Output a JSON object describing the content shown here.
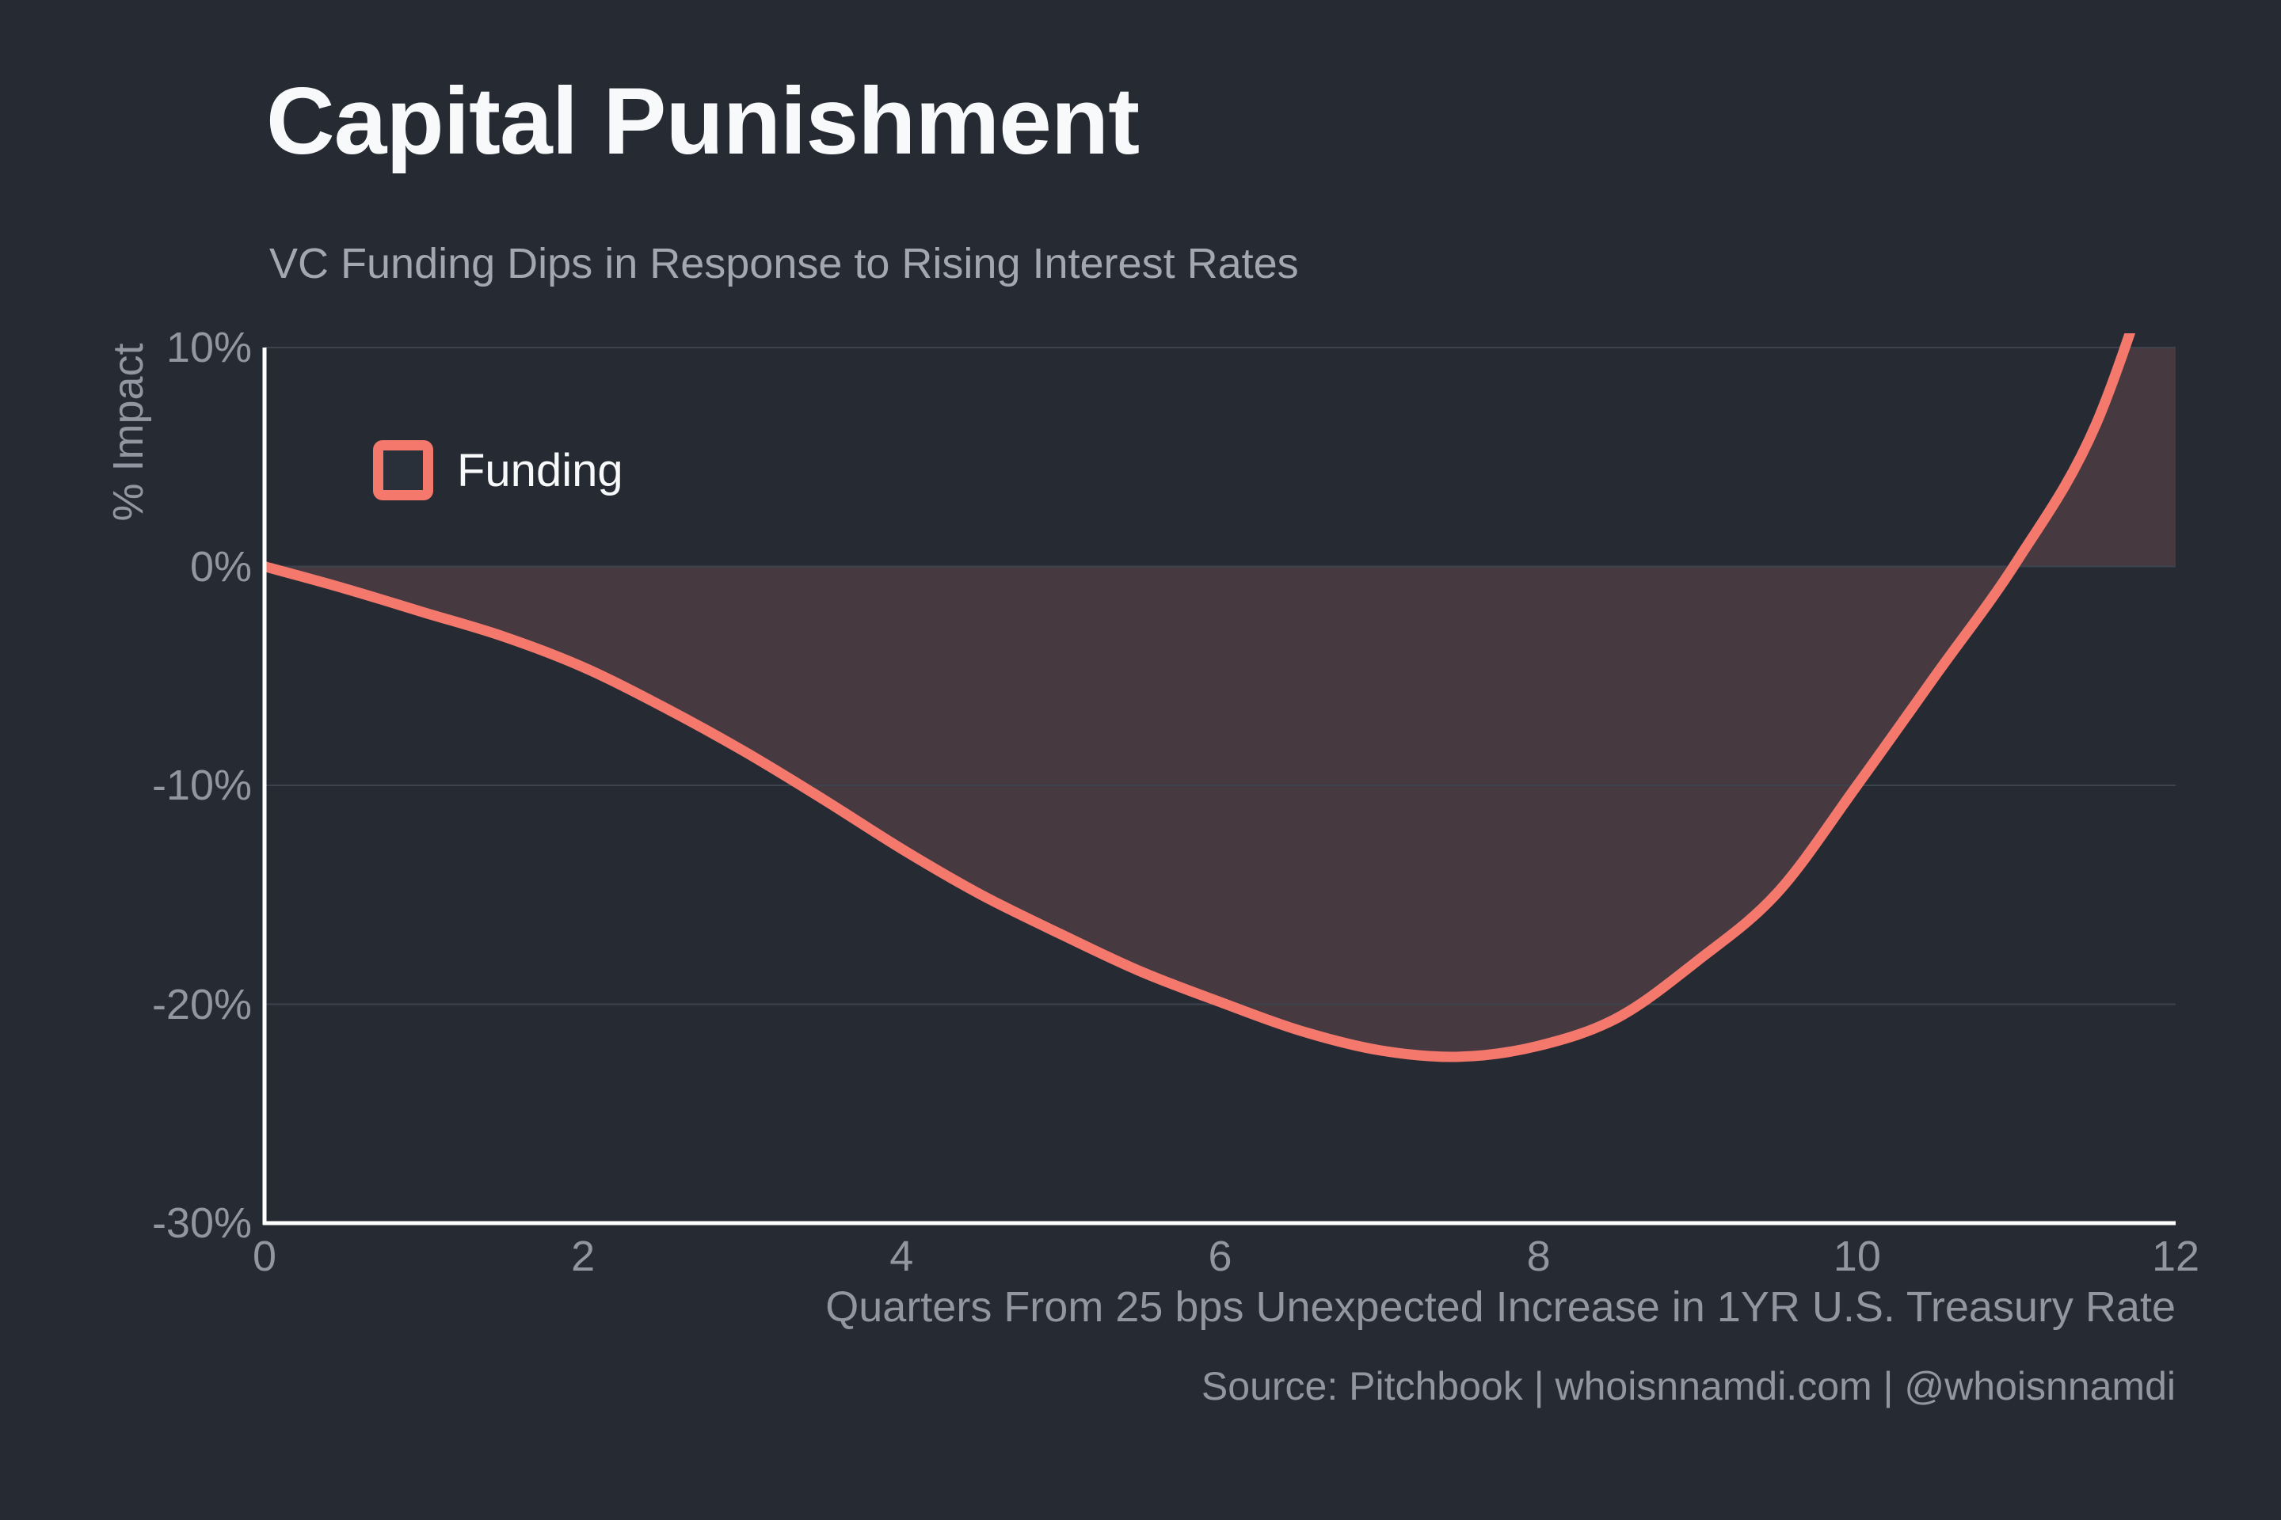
{
  "footer": {
    "source": "Source: Pitchbook | whoisnnamdi.com | @whoisnnamdi"
  },
  "colors": {
    "background": "#262B33",
    "line": "#F5786D",
    "area_fill": "#473940",
    "gridline": "#3C434D",
    "axis": "#FFFFFF",
    "text_primary": "#F8F9FA",
    "text_muted": "#9097A0",
    "text_subtitle": "#A2A8B0",
    "legend_key_bg": "#2A303A"
  },
  "chart_data": {
    "type": "area",
    "title": "Capital Punishment",
    "subtitle": "VC Funding Dips in Response to Rising Interest Rates",
    "xlabel": "Quarters From 25 bps Unexpected Increase in 1YR U.S. Treasury Rate",
    "ylabel": "% Impact",
    "legend_position": "top-left-inside",
    "grid": "horizontal-only",
    "xlim": [
      0,
      12
    ],
    "ylim": [
      -30,
      10
    ],
    "baseline": 0,
    "clip_note": "curve exceeds +10% after x≈11.7 and is clipped at top of panel",
    "x_ticks": [
      {
        "label": "0",
        "value": 0
      },
      {
        "label": "2",
        "value": 2
      },
      {
        "label": "4",
        "value": 4
      },
      {
        "label": "6",
        "value": 6
      },
      {
        "label": "8",
        "value": 8
      },
      {
        "label": "10",
        "value": 10
      },
      {
        "label": "12",
        "value": 12
      }
    ],
    "y_ticks": [
      {
        "label": "10%",
        "value": 10
      },
      {
        "label": "0%",
        "value": 0
      },
      {
        "label": "-10%",
        "value": -10
      },
      {
        "label": "-20%",
        "value": -20
      },
      {
        "label": "-30%",
        "value": -30
      }
    ],
    "grid_values": [
      10,
      0,
      -10,
      -20
    ],
    "series": [
      {
        "name": "Funding",
        "x": [
          0,
          0.5,
          1,
          1.5,
          2,
          2.5,
          3,
          3.5,
          4,
          4.5,
          5,
          5.5,
          6,
          6.5,
          7,
          7.5,
          8,
          8.5,
          9,
          9.5,
          10,
          10.5,
          11,
          11.5,
          12
        ],
        "y": [
          0,
          -1.0,
          -2.1,
          -3.2,
          -4.6,
          -6.4,
          -8.4,
          -10.6,
          -12.9,
          -15.0,
          -16.8,
          -18.5,
          -19.9,
          -21.2,
          -22.1,
          -22.4,
          -21.9,
          -20.6,
          -18.0,
          -14.9,
          -10.0,
          -4.9,
          0.2,
          6.5,
          17.0
        ],
        "min_point": {
          "x": 7.5,
          "y": -22.4
        },
        "zero_crossing_x": 11.0
      }
    ]
  }
}
